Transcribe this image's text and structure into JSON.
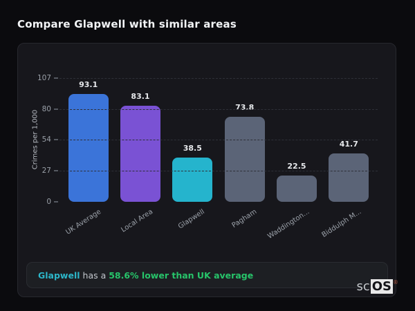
{
  "title": "Compare Glapwell with similar areas",
  "chart_data": {
    "type": "bar",
    "title": "Compare Glapwell with similar areas",
    "categories": [
      "UK Average",
      "Local Area",
      "Glapwell",
      "Pagham",
      "Waddington...",
      "Biddulph M..."
    ],
    "values": [
      93.1,
      83.1,
      38.5,
      73.8,
      22.5,
      41.7
    ],
    "bar_colors": [
      "#3b74d9",
      "#7a52d4",
      "#25b4cd",
      "#5b6477",
      "#5b6477",
      "#5b6477"
    ],
    "xlabel": "",
    "ylabel": "Crimes per 1,000",
    "yticks": [
      0,
      27,
      54,
      80,
      107
    ],
    "ylim": [
      0,
      107
    ],
    "grid": "horizontal-dashed",
    "legend": "none",
    "value_labels": true
  },
  "note": {
    "area": "Glapwell",
    "connector": " has a ",
    "stat": "58.6% lower than UK average"
  },
  "logo": {
    "prefix": "sc",
    "suffix": "OS",
    "mark": "®"
  },
  "colors": {
    "page_background": "#0b0b0e",
    "panel_background": "#17171c",
    "note_background": "#1d1f23",
    "accent_teal": "#2cb6c9",
    "accent_green": "#27c46a",
    "bar_blue": "#3b74d9",
    "bar_purple": "#7a52d4",
    "bar_teal": "#25b4cd",
    "bar_slate": "#5b6477",
    "text_primary": "#f2f4f6",
    "text_axis": "#9aa0a8"
  }
}
